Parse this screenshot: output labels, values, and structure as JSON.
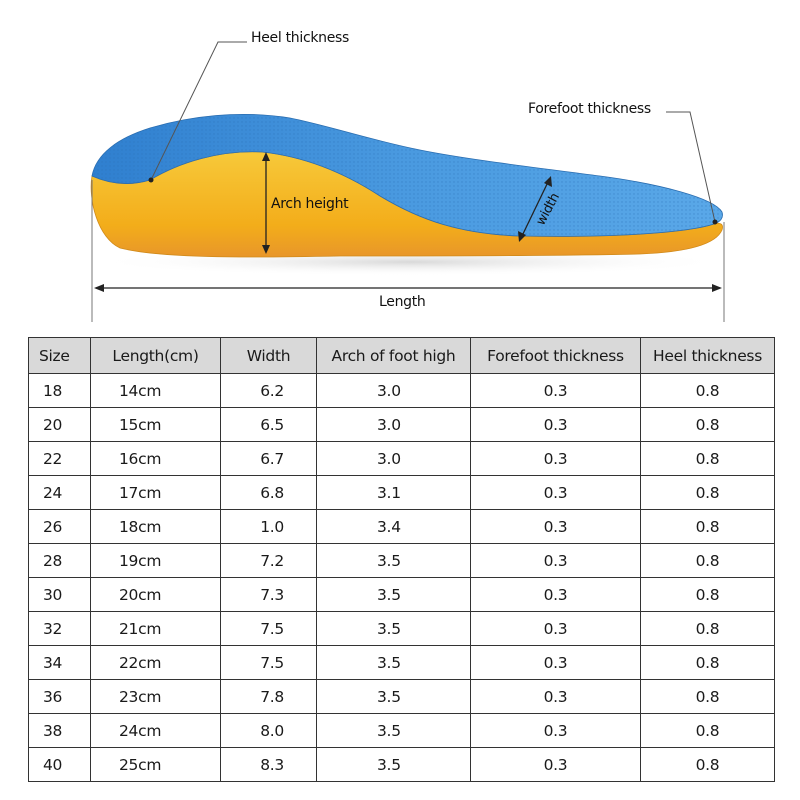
{
  "diagram": {
    "heel_thickness_label": "Heel thickness",
    "forefoot_thickness_label": "Forefoot thickness",
    "arch_height_label": "Arch height",
    "width_label": "width",
    "length_label": "Length",
    "colors": {
      "top_layer": "#3d8fd6",
      "base_layer": "#f5b51e",
      "outline": "#555555"
    }
  },
  "table": {
    "headers": [
      "Size",
      "Length(cm)",
      "Width",
      "Arch of foot high",
      "Forefoot thickness",
      "Heel thickness"
    ],
    "rows": [
      [
        "18",
        "14cm",
        "6.2",
        "3.0",
        "0.3",
        "0.8"
      ],
      [
        "20",
        "15cm",
        "6.5",
        "3.0",
        "0.3",
        "0.8"
      ],
      [
        "22",
        "16cm",
        "6.7",
        "3.0",
        "0.3",
        "0.8"
      ],
      [
        "24",
        "17cm",
        "6.8",
        "3.1",
        "0.3",
        "0.8"
      ],
      [
        "26",
        "18cm",
        "1.0",
        "3.4",
        "0.3",
        "0.8"
      ],
      [
        "28",
        "19cm",
        "7.2",
        "3.5",
        "0.3",
        "0.8"
      ],
      [
        "30",
        "20cm",
        "7.3",
        "3.5",
        "0.3",
        "0.8"
      ],
      [
        "32",
        "21cm",
        "7.5",
        "3.5",
        "0.3",
        "0.8"
      ],
      [
        "34",
        "22cm",
        "7.5",
        "3.5",
        "0.3",
        "0.8"
      ],
      [
        "36",
        "23cm",
        "7.8",
        "3.5",
        "0.3",
        "0.8"
      ],
      [
        "38",
        "24cm",
        "8.0",
        "3.5",
        "0.3",
        "0.8"
      ],
      [
        "40",
        "25cm",
        "8.3",
        "3.5",
        "0.3",
        "0.8"
      ]
    ],
    "header_bg": "#d9d9d9"
  }
}
